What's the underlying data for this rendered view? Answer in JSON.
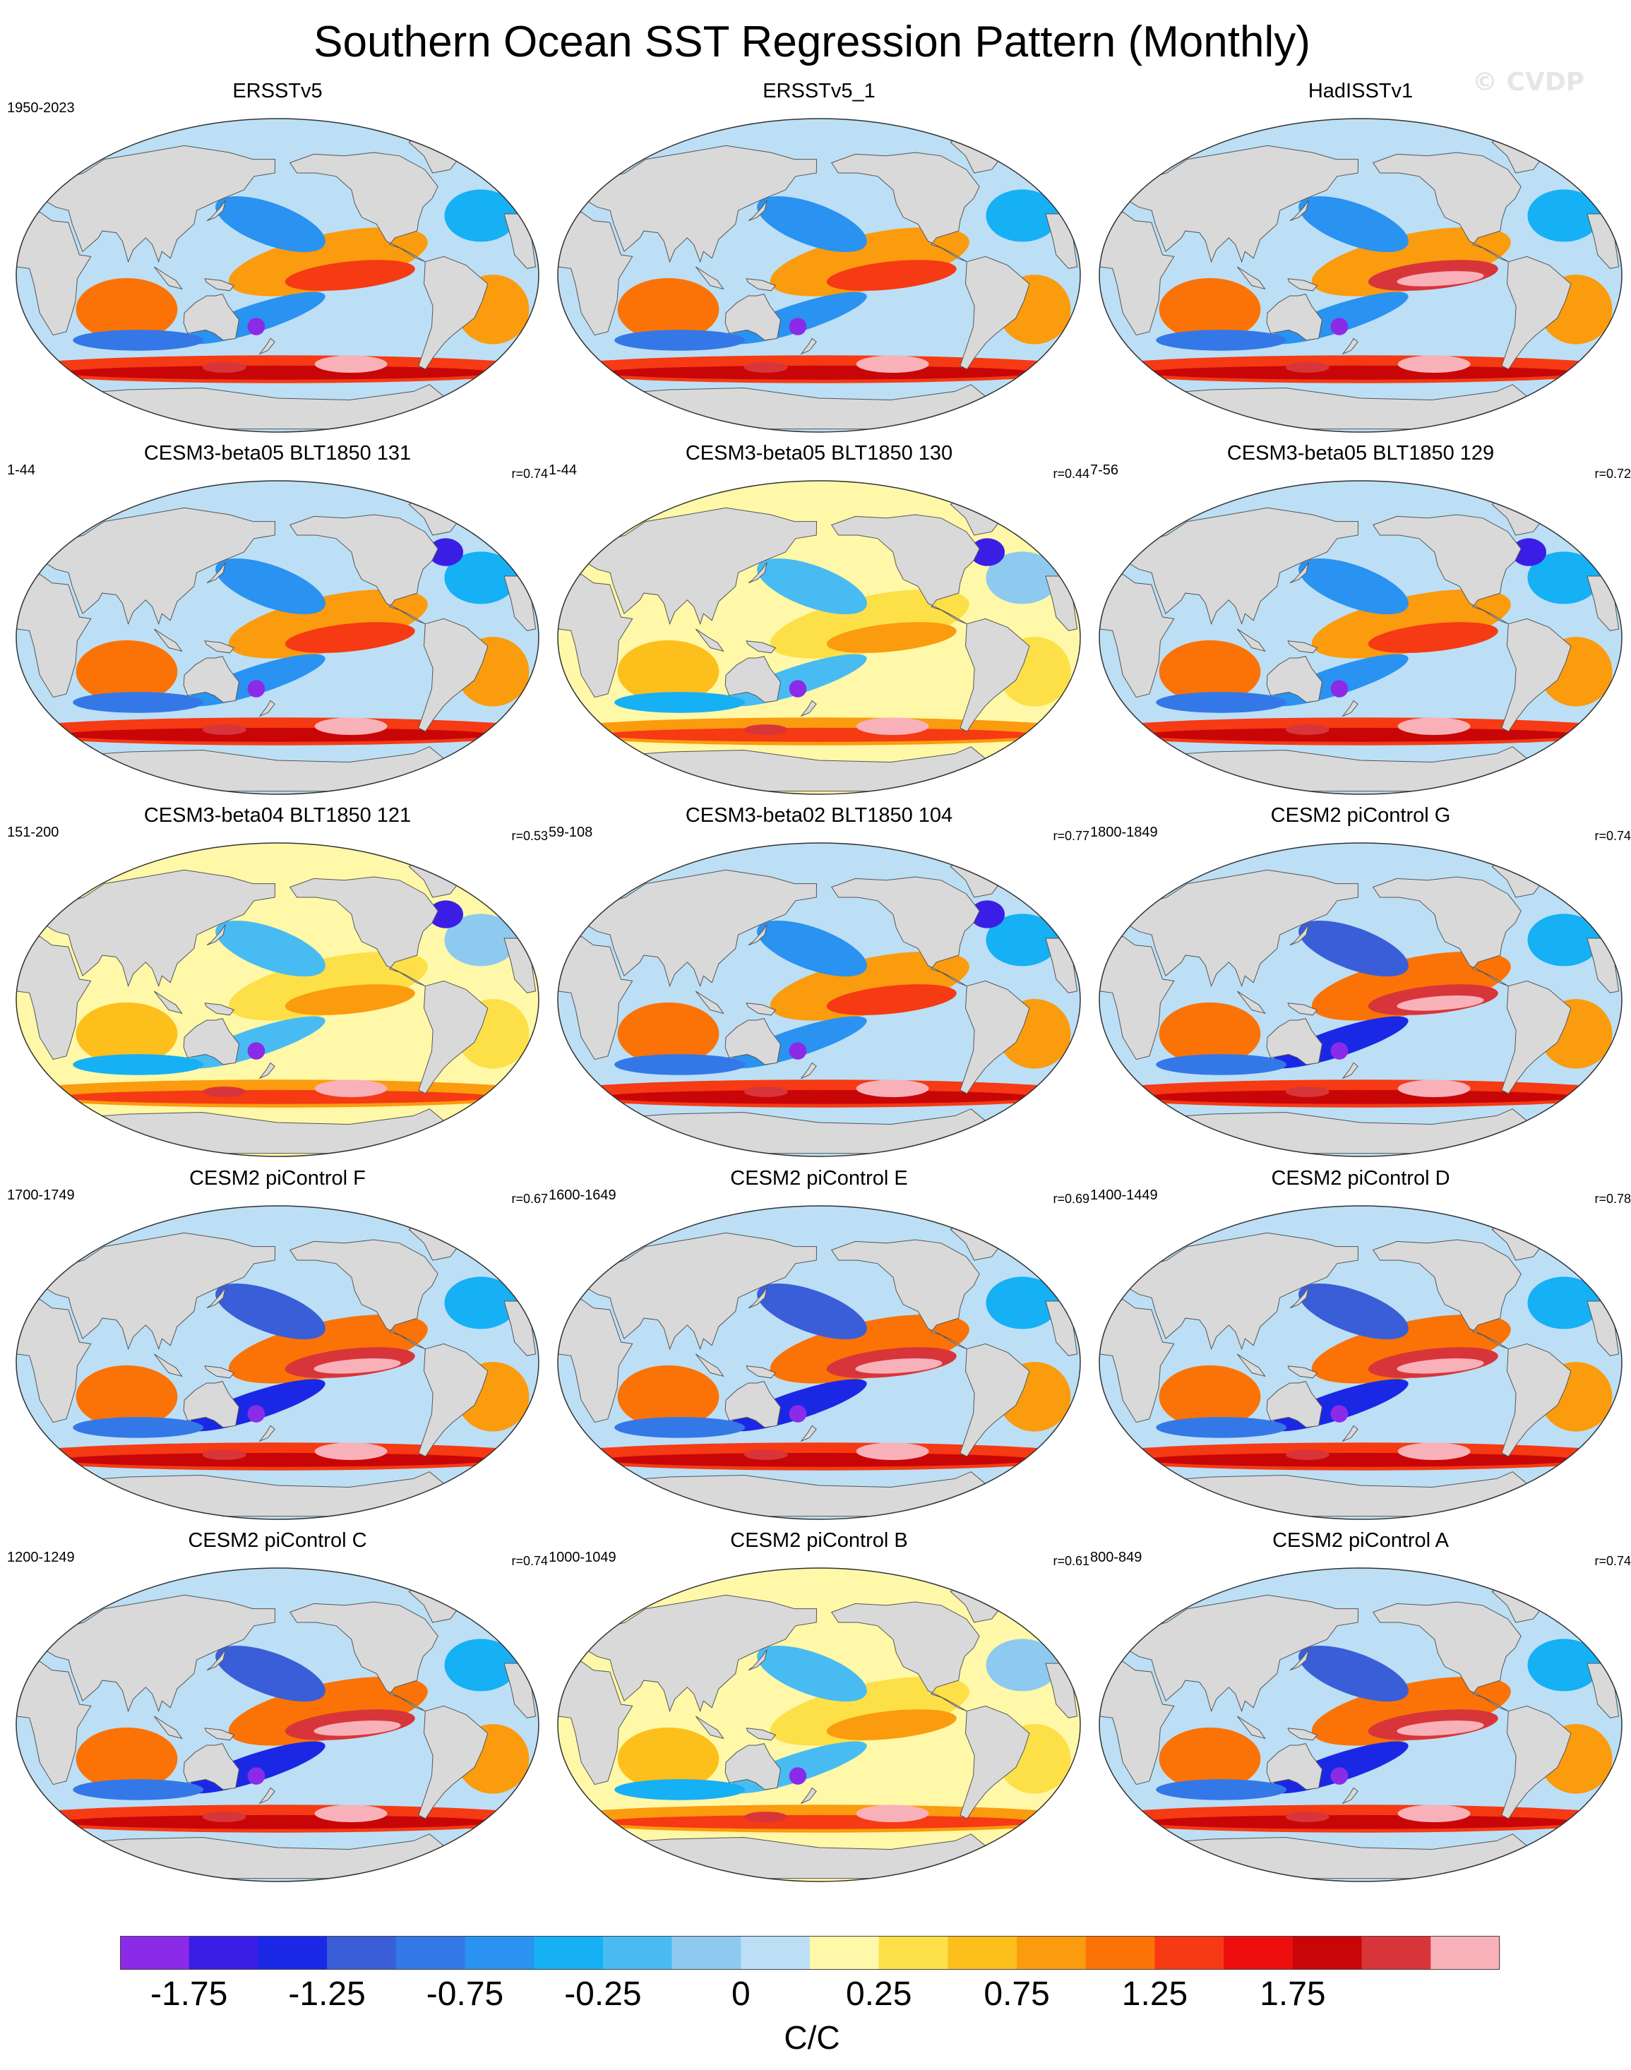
{
  "title": "Southern Ocean SST Regression Pattern (Monthly)",
  "watermark": "© CVDP",
  "chart_data": {
    "type": "heatmap",
    "title": "Southern Ocean SST Regression Pattern (Monthly)",
    "projection": "Robinson global maps",
    "units": "C/C",
    "colorbar": {
      "tick_labels": [
        "-1.75",
        "-1.25",
        "-0.75",
        "-0.25",
        "0",
        "0.25",
        "0.75",
        "1.25",
        "1.75"
      ],
      "levels": [
        -2.0,
        -1.75,
        -1.5,
        -1.25,
        -1.0,
        -0.75,
        -0.5,
        -0.25,
        -0.1,
        0,
        0.1,
        0.25,
        0.5,
        0.75,
        1.0,
        1.25,
        1.5,
        1.75,
        2.0
      ],
      "colors": [
        "#8b2be8",
        "#3b1ee6",
        "#1a28e6",
        "#3a5ed8",
        "#3478e8",
        "#2a92f0",
        "#16b0f5",
        "#48bcf2",
        "#8ecaf0",
        "#bcdff5",
        "#fff8a8",
        "#fde047",
        "#fcbf1c",
        "#fb9b0e",
        "#fb7306",
        "#f53a14",
        "#ee0e0e",
        "#c80608",
        "#d8353a",
        "#f9b1b9"
      ]
    },
    "panels": [
      {
        "name": "ERSSTv5",
        "years": "1950-2023",
        "r": "",
        "style": "obs"
      },
      {
        "name": "ERSSTv5_1",
        "years": "",
        "r": "",
        "style": "obs"
      },
      {
        "name": "HadISSTv1",
        "years": "",
        "r": "",
        "style": "had"
      },
      {
        "name": "CESM3-beta05 BLT1850 131",
        "years": "1-44",
        "r": "r=0.74",
        "style": "beta"
      },
      {
        "name": "CESM3-beta05 BLT1850 130",
        "years": "1-44",
        "r": "r=0.44",
        "style": "betaweak"
      },
      {
        "name": "CESM3-beta05 BLT1850 129",
        "years": "7-56",
        "r": "r=0.72",
        "style": "beta"
      },
      {
        "name": "CESM3-beta04 BLT1850 121",
        "years": "151-200",
        "r": "r=0.53",
        "style": "betaweak"
      },
      {
        "name": "CESM3-beta02 BLT1850 104",
        "years": "59-108",
        "r": "r=0.77",
        "style": "beta"
      },
      {
        "name": "CESM2 piControl G",
        "years": "1800-1849",
        "r": "r=0.74",
        "style": "cesm2"
      },
      {
        "name": "CESM2 piControl F",
        "years": "1700-1749",
        "r": "r=0.67",
        "style": "cesm2"
      },
      {
        "name": "CESM2 piControl E",
        "years": "1600-1649",
        "r": "r=0.69",
        "style": "cesm2"
      },
      {
        "name": "CESM2 piControl D",
        "years": "1400-1449",
        "r": "r=0.78",
        "style": "cesm2"
      },
      {
        "name": "CESM2 piControl C",
        "years": "1200-1249",
        "r": "r=0.74",
        "style": "cesm2"
      },
      {
        "name": "CESM2 piControl B",
        "years": "1000-1049",
        "r": "r=0.61",
        "style": "cesm2weak"
      },
      {
        "name": "CESM2 piControl A",
        "years": "800-849",
        "r": "r=0.74",
        "style": "cesm2"
      }
    ]
  }
}
